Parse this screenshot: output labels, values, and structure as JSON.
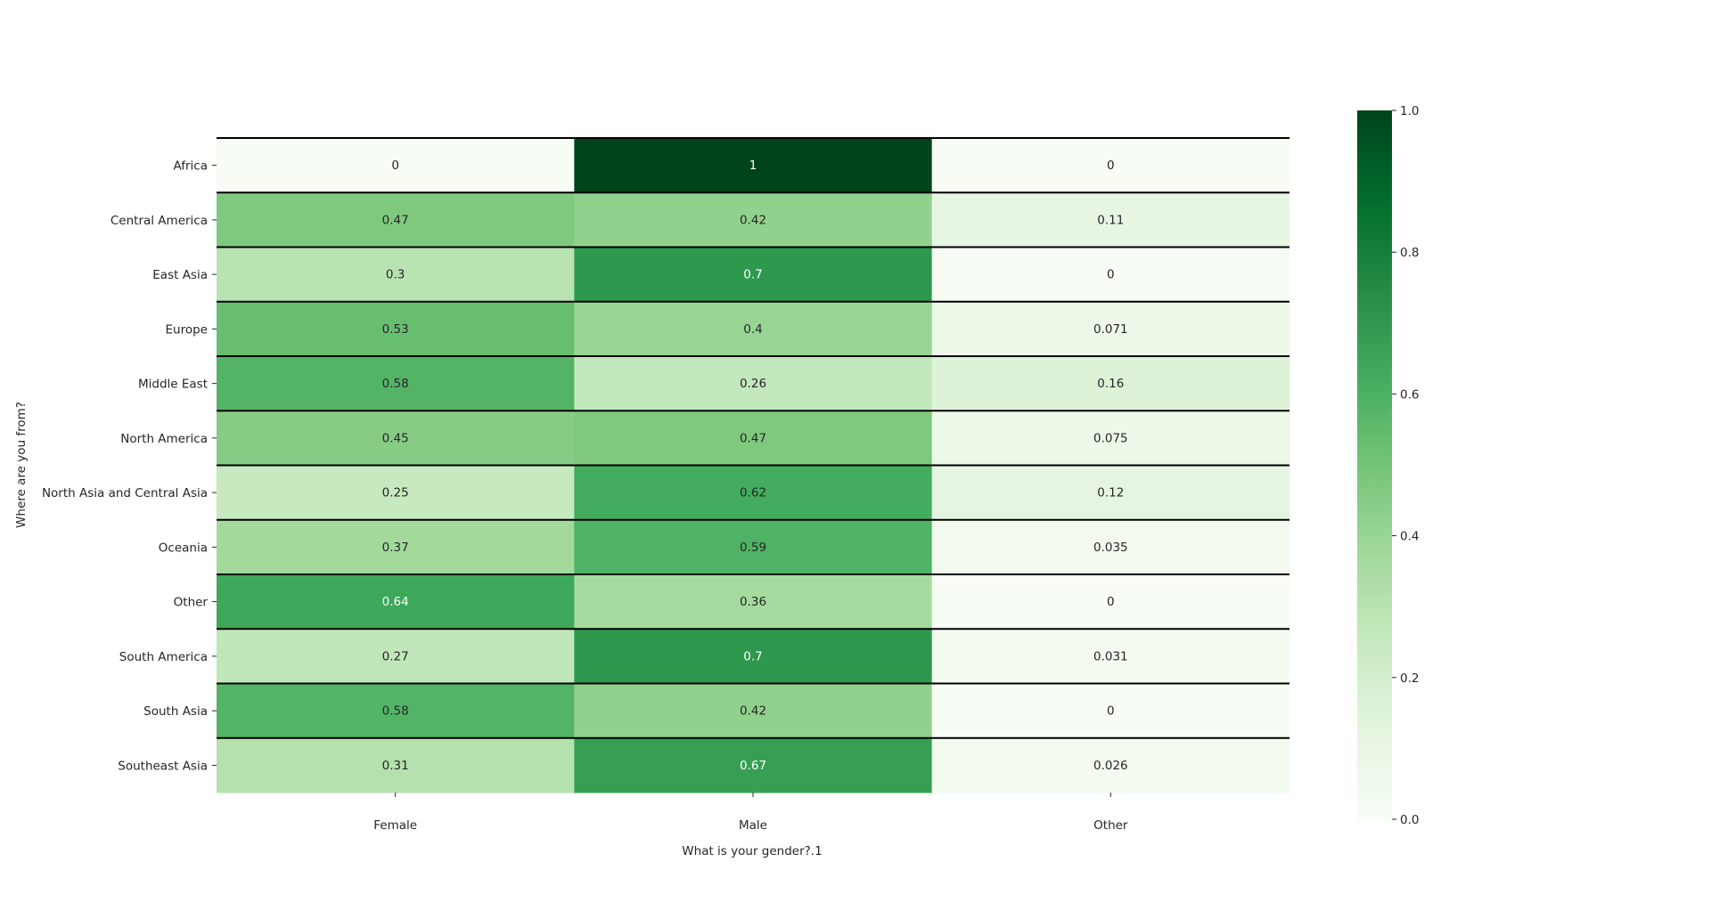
{
  "chart_data": {
    "type": "heatmap",
    "xlabel": "What is your gender?.1",
    "ylabel": "Where are you from?",
    "x_categories": [
      "Female",
      "Male",
      "Other"
    ],
    "y_categories": [
      "Africa",
      "Central America",
      "East Asia",
      "Europe",
      "Middle East",
      "North America",
      "North Asia and Central Asia",
      "Oceania",
      "Other",
      "South America",
      "South Asia",
      "Southeast Asia"
    ],
    "values": [
      [
        0,
        1,
        0
      ],
      [
        0.47,
        0.42,
        0.11
      ],
      [
        0.3,
        0.7,
        0
      ],
      [
        0.53,
        0.4,
        0.071
      ],
      [
        0.58,
        0.26,
        0.16
      ],
      [
        0.45,
        0.47,
        0.075
      ],
      [
        0.25,
        0.62,
        0.12
      ],
      [
        0.37,
        0.59,
        0.035
      ],
      [
        0.64,
        0.36,
        0
      ],
      [
        0.27,
        0.7,
        0.031
      ],
      [
        0.58,
        0.42,
        0
      ],
      [
        0.31,
        0.67,
        0.026
      ]
    ],
    "value_labels": [
      [
        "0",
        "1",
        "0"
      ],
      [
        "0.47",
        "0.42",
        "0.11"
      ],
      [
        "0.3",
        "0.7",
        "0"
      ],
      [
        "0.53",
        "0.4",
        "0.071"
      ],
      [
        "0.58",
        "0.26",
        "0.16"
      ],
      [
        "0.45",
        "0.47",
        "0.075"
      ],
      [
        "0.25",
        "0.62",
        "0.12"
      ],
      [
        "0.37",
        "0.59",
        "0.035"
      ],
      [
        "0.64",
        "0.36",
        "0"
      ],
      [
        "0.27",
        "0.7",
        "0.031"
      ],
      [
        "0.58",
        "0.42",
        "0"
      ],
      [
        "0.31",
        "0.67",
        "0.026"
      ]
    ],
    "colormap": "Greens",
    "vmin": 0,
    "vmax": 1,
    "colorbar_ticks": [
      "0.0",
      "0.2",
      "0.4",
      "0.6",
      "0.8",
      "1.0"
    ],
    "colorbar_tick_values": [
      0,
      0.2,
      0.4,
      0.6,
      0.8,
      1.0
    ],
    "row_separators": true,
    "separator_color": "#000000"
  }
}
